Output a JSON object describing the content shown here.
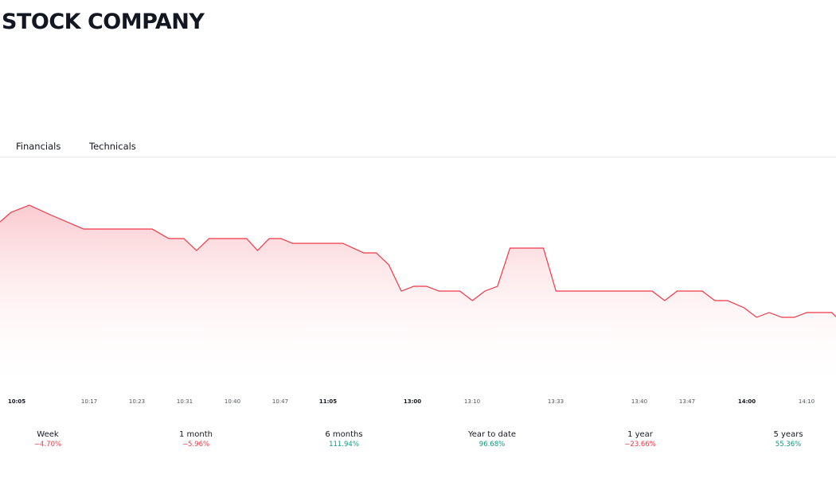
{
  "header": {
    "title": "STOCK COMPANY"
  },
  "tabs": [
    {
      "label": "Financials"
    },
    {
      "label": "Technicals"
    }
  ],
  "colors": {
    "line": "#f23645",
    "fill_top": "#f7a8b0",
    "positive": "#089981",
    "negative": "#f23645"
  },
  "chart_data": {
    "type": "area",
    "title": "",
    "xlabel": "",
    "ylabel": "",
    "grid": false,
    "tick_labels": [
      "10:05",
      "10:17",
      "10:23",
      "10:31",
      "10:40",
      "10:47",
      "11:05",
      "13:00",
      "13:10",
      "13:33",
      "13:40",
      "13:47",
      "14:00",
      "14:10"
    ],
    "bold_ticks": [
      "10:05",
      "11:05",
      "13:00",
      "14:00"
    ],
    "ylim": [
      0,
      100
    ],
    "points": [
      [
        0.0,
        71
      ],
      [
        1.3,
        75
      ],
      [
        3.5,
        78
      ],
      [
        6.0,
        74
      ],
      [
        10.0,
        68
      ],
      [
        16.0,
        68
      ],
      [
        18.2,
        68
      ],
      [
        20.2,
        64
      ],
      [
        22.0,
        64
      ],
      [
        23.5,
        59
      ],
      [
        25.0,
        64
      ],
      [
        26.5,
        64
      ],
      [
        29.5,
        64
      ],
      [
        30.8,
        59
      ],
      [
        32.2,
        64
      ],
      [
        33.6,
        64
      ],
      [
        35.0,
        62
      ],
      [
        36.8,
        62
      ],
      [
        41.0,
        62
      ],
      [
        43.5,
        58
      ],
      [
        45.0,
        58
      ],
      [
        46.5,
        53
      ],
      [
        48.0,
        42
      ],
      [
        49.5,
        44
      ],
      [
        51.0,
        44
      ],
      [
        52.5,
        42
      ],
      [
        55.0,
        42
      ],
      [
        56.5,
        38
      ],
      [
        58.0,
        42
      ],
      [
        59.5,
        44
      ],
      [
        61.0,
        60
      ],
      [
        65.0,
        60
      ],
      [
        66.5,
        42
      ],
      [
        78.0,
        42
      ],
      [
        79.5,
        38
      ],
      [
        81.0,
        42
      ],
      [
        84.0,
        42
      ],
      [
        85.5,
        38
      ],
      [
        87.0,
        38
      ],
      [
        89.0,
        35
      ],
      [
        90.5,
        31
      ],
      [
        92.0,
        33
      ],
      [
        93.5,
        31
      ],
      [
        95.0,
        31
      ],
      [
        96.5,
        33
      ],
      [
        99.5,
        33
      ],
      [
        100.6,
        29
      ]
    ]
  },
  "performance": [
    {
      "label": "Week",
      "value": "−4.70%",
      "trend": "neg"
    },
    {
      "label": "1 month",
      "value": "−5.96%",
      "trend": "neg"
    },
    {
      "label": "6 months",
      "value": "111.94%",
      "trend": "pos"
    },
    {
      "label": "Year to date",
      "value": "96.68%",
      "trend": "pos"
    },
    {
      "label": "1 year",
      "value": "−23.66%",
      "trend": "neg"
    },
    {
      "label": "5 years",
      "value": "55.36%",
      "trend": "pos"
    }
  ]
}
